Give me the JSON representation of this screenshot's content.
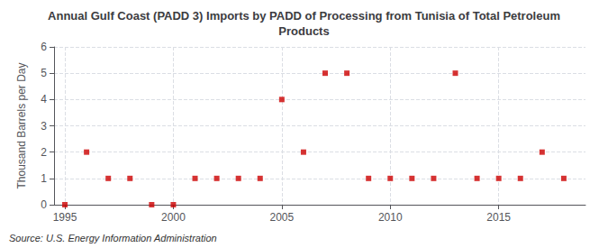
{
  "chart_data": {
    "type": "scatter",
    "title": "Annual Gulf Coast (PADD 3) Imports by PADD of Processing from Tunisia of Total Petroleum\nProducts",
    "ylabel": "Thousand Barrels per Day",
    "annotations": [
      "Source: U.S. Energy Information Administration"
    ],
    "x": [
      1995,
      1996,
      1997,
      1998,
      1999,
      2000,
      2001,
      2002,
      2003,
      2004,
      2005,
      2006,
      2007,
      2008,
      2009,
      2010,
      2011,
      2012,
      2013,
      2014,
      2015,
      2016,
      2017,
      2018
    ],
    "values": [
      0,
      2,
      1,
      1,
      0,
      0,
      1,
      1,
      1,
      1,
      4,
      2,
      5,
      5,
      1,
      1,
      1,
      1,
      5,
      1,
      1,
      1,
      2,
      1
    ],
    "color": "#cc0000",
    "marker": "square",
    "xlim": [
      1994.5,
      2019
    ],
    "xticks": [
      1995,
      2000,
      2005,
      2010,
      2015
    ],
    "ylim": [
      0,
      6
    ],
    "yticks": [
      0,
      1,
      2,
      3,
      4,
      5,
      6
    ],
    "grid": true
  }
}
